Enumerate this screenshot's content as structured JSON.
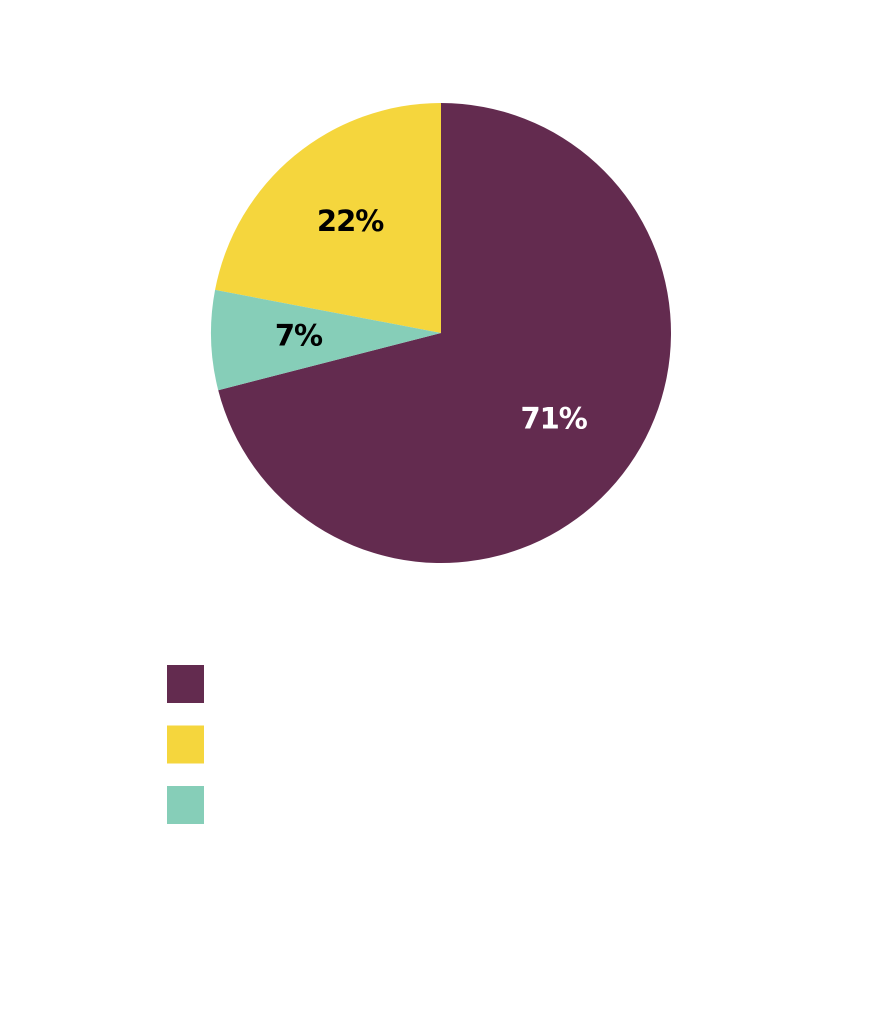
{
  "chart_data": {
    "type": "pie",
    "values": [
      71,
      22,
      7
    ],
    "value_labels": [
      "71%",
      "22%",
      "7%"
    ],
    "colors": [
      "#632b4f",
      "#f5d63d",
      "#86ceb8"
    ],
    "label_colors": [
      "#ffffff",
      "#000000",
      "#000000"
    ]
  }
}
